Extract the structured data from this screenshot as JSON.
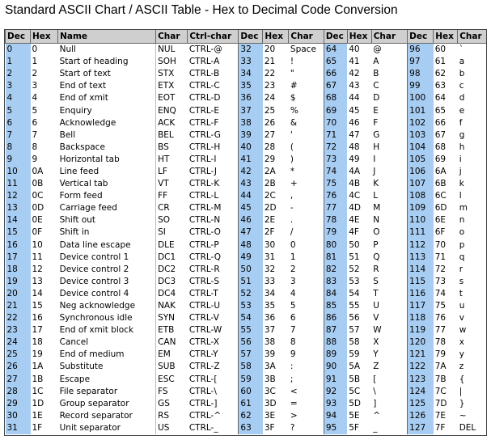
{
  "title": "Standard ASCII Chart / ASCII Table - Hex to Decimal Code Conversion",
  "headers": [
    "Dec",
    "Hex",
    "Name",
    "Char",
    "Ctrl-char",
    "Dec",
    "Hex",
    "Char",
    "Dec",
    "Hex",
    "Char",
    "Dec",
    "Hex",
    "Char"
  ],
  "rows": [
    [
      "0",
      "0",
      "Null",
      "NUL",
      "CTRL-@",
      "32",
      "20",
      "Space",
      "64",
      "40",
      "@",
      "96",
      "60",
      "`"
    ],
    [
      "1",
      "1",
      "Start of heading",
      "SOH",
      "CTRL-A",
      "33",
      "21",
      "!",
      "65",
      "41",
      "A",
      "97",
      "61",
      "a"
    ],
    [
      "2",
      "2",
      "Start of text",
      "STX",
      "CTRL-B",
      "34",
      "22",
      "\"",
      "66",
      "42",
      "B",
      "98",
      "62",
      "b"
    ],
    [
      "3",
      "3",
      "End of text",
      "ETX",
      "CTRL-C",
      "35",
      "23",
      "#",
      "67",
      "43",
      "C",
      "99",
      "63",
      "c"
    ],
    [
      "4",
      "4",
      "End of xmit",
      "EOT",
      "CTRL-D",
      "36",
      "24",
      "$",
      "68",
      "44",
      "D",
      "100",
      "64",
      "d"
    ],
    [
      "5",
      "5",
      "Enquiry",
      "ENQ",
      "CTRL-E",
      "37",
      "25",
      "%",
      "69",
      "45",
      "E",
      "101",
      "65",
      "e"
    ],
    [
      "6",
      "6",
      "Acknowledge",
      "ACK",
      "CTRL-F",
      "38",
      "26",
      "&",
      "70",
      "46",
      "F",
      "102",
      "66",
      "f"
    ],
    [
      "7",
      "7",
      "Bell",
      "BEL",
      "CTRL-G",
      "39",
      "27",
      "'",
      "71",
      "47",
      "G",
      "103",
      "67",
      "g"
    ],
    [
      "8",
      "8",
      "Backspace",
      "BS",
      "CTRL-H",
      "40",
      "28",
      "(",
      "72",
      "48",
      "H",
      "104",
      "68",
      "h"
    ],
    [
      "9",
      "9",
      "Horizontal tab",
      "HT",
      "CTRL-I",
      "41",
      "29",
      ")",
      "73",
      "49",
      "I",
      "105",
      "69",
      "i"
    ],
    [
      "10",
      "0A",
      "Line feed",
      "LF",
      "CTRL-J",
      "42",
      "2A",
      "*",
      "74",
      "4A",
      "J",
      "106",
      "6A",
      "j"
    ],
    [
      "11",
      "0B",
      "Vertical tab",
      "VT",
      "CTRL-K",
      "43",
      "2B",
      "+",
      "75",
      "4B",
      "K",
      "107",
      "6B",
      "k"
    ],
    [
      "12",
      "0C",
      "Form feed",
      "FF",
      "CTRL-L",
      "44",
      "2C",
      ",",
      "76",
      "4C",
      "L",
      "108",
      "6C",
      "l"
    ],
    [
      "13",
      "0D",
      "Carriage feed",
      "CR",
      "CTRL-M",
      "45",
      "2D",
      "-",
      "77",
      "4D",
      "M",
      "109",
      "6D",
      "m"
    ],
    [
      "14",
      "0E",
      "Shift out",
      "SO",
      "CTRL-N",
      "46",
      "2E",
      ".",
      "78",
      "4E",
      "N",
      "110",
      "6E",
      "n"
    ],
    [
      "15",
      "0F",
      "Shift in",
      "SI",
      "CTRL-O",
      "47",
      "2F",
      "/",
      "79",
      "4F",
      "O",
      "111",
      "6F",
      "o"
    ],
    [
      "16",
      "10",
      "Data line escape",
      "DLE",
      "CTRL-P",
      "48",
      "30",
      "0",
      "80",
      "50",
      "P",
      "112",
      "70",
      "p"
    ],
    [
      "17",
      "11",
      "Device control 1",
      "DC1",
      "CTRL-Q",
      "49",
      "31",
      "1",
      "81",
      "51",
      "Q",
      "113",
      "71",
      "q"
    ],
    [
      "18",
      "12",
      "Device control 2",
      "DC2",
      "CTRL-R",
      "50",
      "32",
      "2",
      "82",
      "52",
      "R",
      "114",
      "72",
      "r"
    ],
    [
      "19",
      "13",
      "Device control 3",
      "DC3",
      "CTRL-S",
      "51",
      "33",
      "3",
      "83",
      "53",
      "S",
      "115",
      "73",
      "s"
    ],
    [
      "20",
      "14",
      "Device control 4",
      "DC4",
      "CTRL-T",
      "52",
      "34",
      "4",
      "84",
      "54",
      "T",
      "116",
      "74",
      "t"
    ],
    [
      "21",
      "15",
      "Neg acknowledge",
      "NAK",
      "CTRL-U",
      "53",
      "35",
      "5",
      "85",
      "55",
      "U",
      "117",
      "75",
      "u"
    ],
    [
      "22",
      "16",
      "Synchronous idle",
      "SYN",
      "CTRL-V",
      "54",
      "36",
      "6",
      "86",
      "56",
      "V",
      "118",
      "76",
      "v"
    ],
    [
      "23",
      "17",
      "End of xmit block",
      "ETB",
      "CTRL-W",
      "55",
      "37",
      "7",
      "87",
      "57",
      "W",
      "119",
      "77",
      "w"
    ],
    [
      "24",
      "18",
      "Cancel",
      "CAN",
      "CTRL-X",
      "56",
      "38",
      "8",
      "88",
      "58",
      "X",
      "120",
      "78",
      "x"
    ],
    [
      "25",
      "19",
      "End of medium",
      "EM",
      "CTRL-Y",
      "57",
      "39",
      "9",
      "89",
      "59",
      "Y",
      "121",
      "79",
      "y"
    ],
    [
      "26",
      "1A",
      "Substitute",
      "SUB",
      "CTRL-Z",
      "58",
      "3A",
      ":",
      "90",
      "5A",
      "Z",
      "122",
      "7A",
      "z"
    ],
    [
      "27",
      "1B",
      "Escape",
      "ESC",
      "CTRL-[",
      "59",
      "3B",
      ";",
      "91",
      "5B",
      "[",
      "123",
      "7B",
      "{"
    ],
    [
      "28",
      "1C",
      "File separator",
      "FS",
      "CTRL-\\",
      "60",
      "3C",
      "<",
      "92",
      "5C",
      "\\",
      "124",
      "7C",
      "|"
    ],
    [
      "29",
      "1D",
      "Group separator",
      "GS",
      "CTRL-]",
      "61",
      "3D",
      "=",
      "93",
      "5D",
      "]",
      "125",
      "7D",
      "}"
    ],
    [
      "30",
      "1E",
      "Record separator",
      "RS",
      "CTRL-^",
      "62",
      "3E",
      ">",
      "94",
      "5E",
      "^",
      "126",
      "7E",
      "~"
    ],
    [
      "31",
      "1F",
      "Unit separator",
      "US",
      "CTRL-_",
      "63",
      "3F",
      "?",
      "95",
      "5F",
      "_",
      "127",
      "7F",
      "DEL"
    ]
  ]
}
